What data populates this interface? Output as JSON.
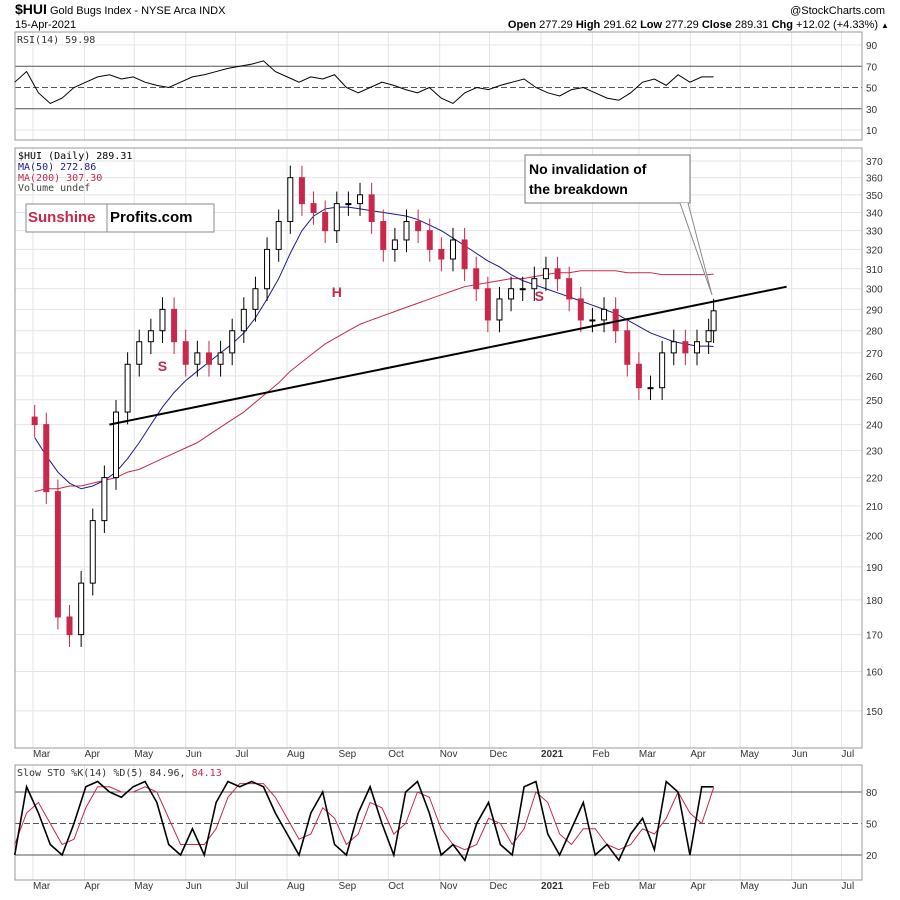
{
  "header": {
    "symbol": "$HUI",
    "name": "Gold Bugs Index - NYSE Arca INDX",
    "date": "15-Apr-2021",
    "watermark": "@StockCharts.com",
    "open_label": "Open",
    "open": "277.29",
    "high_label": "High",
    "high": "291.62",
    "low_label": "Low",
    "low": "277.29",
    "close_label": "Close",
    "close": "289.31",
    "chg_label": "Chg",
    "chg": "+12.02 (+4.33%)"
  },
  "logo": {
    "part1": "Sunshine",
    "part2": "Profits.com",
    "color1": "#c8284a"
  },
  "colors": {
    "ma50": "#1a1a8c",
    "ma200": "#c8284a",
    "down": "#c8284a",
    "up": "#000000",
    "grid": "#e4e4e4"
  },
  "chart_data": [
    {
      "type": "line",
      "title": "RSI(14) 59.98",
      "ylim": [
        0,
        100
      ],
      "yticks": [
        10,
        30,
        50,
        70,
        90
      ],
      "reference_lines": [
        30,
        50,
        70
      ],
      "start": "2020-02-19",
      "end": "2021-04-15",
      "values": [
        55,
        65,
        45,
        35,
        40,
        50,
        55,
        60,
        62,
        58,
        60,
        55,
        52,
        50,
        55,
        60,
        62,
        65,
        68,
        70,
        72,
        75,
        65,
        60,
        55,
        60,
        58,
        62,
        50,
        45,
        50,
        55,
        52,
        48,
        45,
        50,
        40,
        35,
        45,
        50,
        48,
        52,
        55,
        58,
        50,
        45,
        42,
        48,
        50,
        45,
        40,
        38,
        45,
        55,
        58,
        52,
        62,
        55,
        60,
        59.98
      ]
    },
    {
      "type": "candlestick",
      "scale": "log",
      "legend": [
        {
          "label": "$HUI (Daily) 289.31"
        },
        {
          "label": "MA(50) 272.86",
          "color": "#1a1a8c"
        },
        {
          "label": "MA(200) 307.30",
          "color": "#c8284a"
        },
        {
          "label": "Volume undef"
        }
      ],
      "ylim": [
        142,
        376
      ],
      "yticks": [
        150,
        160,
        170,
        180,
        190,
        200,
        210,
        220,
        230,
        240,
        250,
        260,
        270,
        280,
        290,
        300,
        310,
        320,
        330,
        340,
        350,
        360,
        370
      ],
      "x_month_labels": [
        {
          "date": "2020-03-01",
          "label": "Mar"
        },
        {
          "date": "2020-04-01",
          "label": "Apr"
        },
        {
          "date": "2020-05-01",
          "label": "May"
        },
        {
          "date": "2020-06-01",
          "label": "Jun"
        },
        {
          "date": "2020-07-01",
          "label": "Jul"
        },
        {
          "date": "2020-08-01",
          "label": "Aug"
        },
        {
          "date": "2020-09-01",
          "label": "Sep"
        },
        {
          "date": "2020-10-01",
          "label": "Oct"
        },
        {
          "date": "2020-11-01",
          "label": "Nov"
        },
        {
          "date": "2020-12-01",
          "label": "Dec"
        },
        {
          "date": "2021-01-01",
          "label": "2021"
        },
        {
          "date": "2021-02-01",
          "label": "Feb"
        },
        {
          "date": "2021-03-01",
          "label": "Mar"
        },
        {
          "date": "2021-04-01",
          "label": "Apr"
        },
        {
          "date": "2021-05-01",
          "label": "May"
        },
        {
          "date": "2021-06-01",
          "label": "Jun"
        },
        {
          "date": "2021-07-01",
          "label": "Jul"
        }
      ],
      "weekly_start": "2020-03-02",
      "closes": [
        240,
        215,
        175,
        170,
        185,
        205,
        220,
        245,
        265,
        275,
        280,
        290,
        275,
        265,
        270,
        265,
        270,
        280,
        290,
        300,
        320,
        335,
        360,
        345,
        340,
        330,
        345,
        345,
        350,
        335,
        320,
        325,
        335,
        330,
        320,
        315,
        325,
        310,
        300,
        285,
        295,
        300,
        300,
        305,
        310,
        305,
        295,
        285,
        285,
        290,
        280,
        265,
        255,
        255,
        270,
        275,
        270,
        275,
        280,
        289.31
      ],
      "ma50": [
        235,
        228,
        222,
        218,
        216,
        217,
        219,
        222,
        227,
        233,
        240,
        247,
        253,
        258,
        262,
        266,
        270,
        274,
        279,
        286,
        295,
        305,
        318,
        330,
        338,
        342,
        343,
        343,
        342,
        341,
        340,
        339,
        338,
        336,
        333,
        330,
        326,
        322,
        318,
        314,
        311,
        307,
        304,
        302,
        300,
        298,
        296,
        294,
        292,
        290,
        288,
        285,
        282,
        279,
        277,
        275,
        274,
        273,
        273,
        272.86
      ],
      "ma200": [
        215,
        216,
        216,
        217,
        217,
        218,
        219,
        220,
        222,
        223,
        225,
        227,
        229,
        231,
        233,
        236,
        239,
        242,
        245,
        249,
        253,
        257,
        262,
        266,
        270,
        274,
        277,
        280,
        283,
        285,
        287,
        289,
        291,
        293,
        295,
        297,
        299,
        301,
        302,
        303,
        304,
        305,
        305,
        306,
        307,
        308,
        308,
        309,
        309,
        309,
        309,
        308,
        308,
        308,
        307,
        307,
        307,
        307,
        307,
        307.3
      ],
      "trendline": {
        "from": {
          "date": "2020-04-16",
          "value": 240
        },
        "to": {
          "date": "2021-05-29",
          "value": 301
        }
      },
      "annotations": [
        {
          "text": "S",
          "date": "2020-05-18",
          "value": 262
        },
        {
          "text": "H",
          "date": "2020-08-31",
          "value": 296
        },
        {
          "text": "S",
          "date": "2020-12-31",
          "value": 294
        }
      ],
      "callout": {
        "line1": "No invalidation of",
        "line2": "the breakdown"
      }
    },
    {
      "type": "line",
      "title_prefix": "Slow STO %K(14) %D(5) 84.96,",
      "title_d": "84.13",
      "ylim": [
        0,
        100
      ],
      "yticks": [
        20,
        50,
        80
      ],
      "reference_lines": [
        20,
        50,
        80
      ],
      "start": "2020-02-19",
      "end": "2021-04-15",
      "series": [
        {
          "name": "%K",
          "color": "#000000",
          "values": [
            20,
            85,
            60,
            30,
            20,
            50,
            85,
            90,
            80,
            75,
            85,
            90,
            70,
            30,
            20,
            45,
            20,
            70,
            90,
            85,
            90,
            85,
            60,
            40,
            20,
            60,
            80,
            30,
            20,
            60,
            85,
            50,
            20,
            80,
            90,
            60,
            20,
            30,
            15,
            50,
            70,
            30,
            20,
            85,
            90,
            40,
            20,
            45,
            70,
            20,
            30,
            15,
            40,
            55,
            25,
            90,
            80,
            20,
            85,
            84.96
          ]
        },
        {
          "name": "%D",
          "color": "#c8284a",
          "values": [
            30,
            60,
            70,
            50,
            30,
            35,
            65,
            85,
            85,
            80,
            80,
            85,
            80,
            55,
            30,
            30,
            30,
            45,
            75,
            88,
            88,
            88,
            75,
            55,
            35,
            40,
            65,
            55,
            30,
            40,
            70,
            65,
            40,
            50,
            80,
            75,
            45,
            30,
            25,
            30,
            55,
            50,
            30,
            45,
            80,
            70,
            40,
            30,
            45,
            45,
            30,
            25,
            30,
            45,
            40,
            55,
            80,
            60,
            50,
            84.13
          ]
        }
      ]
    }
  ]
}
